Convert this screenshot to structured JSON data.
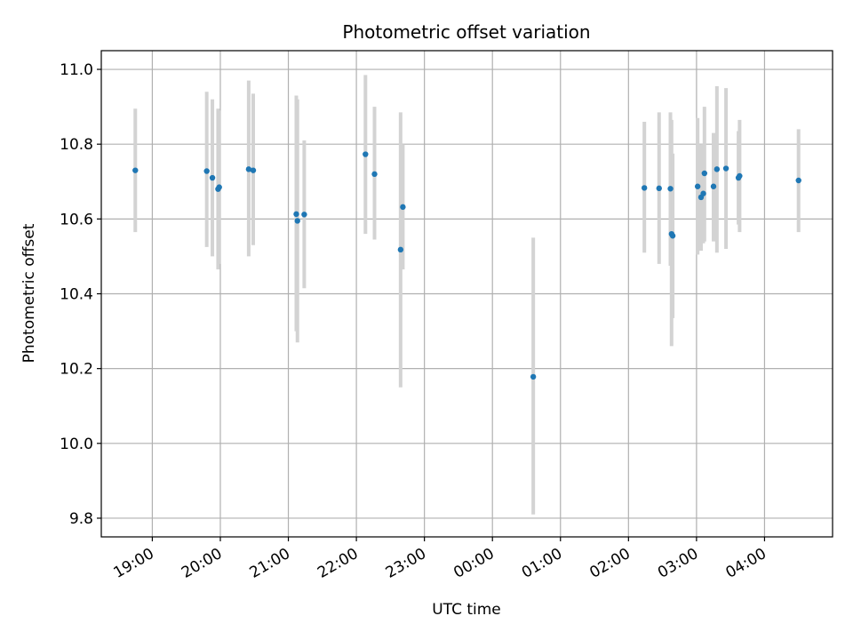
{
  "chart_data": {
    "type": "scatter",
    "title": "Photometric offset variation",
    "xlabel": "UTC time",
    "ylabel": "Photometric offset",
    "x_tick_labels": [
      "19:00",
      "20:00",
      "21:00",
      "22:00",
      "23:00",
      "00:00",
      "01:00",
      "02:00",
      "03:00",
      "04:00"
    ],
    "x_tick_hours": [
      19,
      20,
      21,
      22,
      23,
      24,
      25,
      26,
      27,
      28
    ],
    "xlim_hours": [
      18.25,
      29.0
    ],
    "ylim": [
      9.75,
      11.05
    ],
    "y_ticks": [
      9.8,
      10.0,
      10.2,
      10.4,
      10.6,
      10.8,
      11.0
    ],
    "y_tick_labels": [
      "9.8",
      "10.0",
      "10.2",
      "10.4",
      "10.6",
      "10.8",
      "11.0"
    ],
    "grid": true,
    "marker_color": "#1f77b4",
    "errorbar_color": "#d3d3d3",
    "points": [
      {
        "t": "18:45",
        "y": 10.73,
        "ylow": 10.565,
        "yhigh": 10.895
      },
      {
        "t": "19:48",
        "y": 10.728,
        "ylow": 10.525,
        "yhigh": 10.94
      },
      {
        "t": "19:53",
        "y": 10.71,
        "ylow": 10.5,
        "yhigh": 10.92
      },
      {
        "t": "19:58",
        "y": 10.68,
        "ylow": 10.465,
        "yhigh": 10.895
      },
      {
        "t": "19:59",
        "y": 10.685,
        "ylow": 10.48,
        "yhigh": 10.89
      },
      {
        "t": "20:25",
        "y": 10.733,
        "ylow": 10.5,
        "yhigh": 10.97
      },
      {
        "t": "20:29",
        "y": 10.73,
        "ylow": 10.53,
        "yhigh": 10.935
      },
      {
        "t": "21:07",
        "y": 10.613,
        "ylow": 10.3,
        "yhigh": 10.93
      },
      {
        "t": "21:08",
        "y": 10.595,
        "ylow": 10.27,
        "yhigh": 10.92
      },
      {
        "t": "21:14",
        "y": 10.612,
        "ylow": 10.415,
        "yhigh": 10.81
      },
      {
        "t": "22:08",
        "y": 10.773,
        "ylow": 10.56,
        "yhigh": 10.985
      },
      {
        "t": "22:16",
        "y": 10.72,
        "ylow": 10.545,
        "yhigh": 10.9
      },
      {
        "t": "22:39",
        "y": 10.518,
        "ylow": 10.15,
        "yhigh": 10.885
      },
      {
        "t": "22:41",
        "y": 10.632,
        "ylow": 10.465,
        "yhigh": 10.8
      },
      {
        "t": "00:36",
        "y": 10.178,
        "ylow": 9.81,
        "yhigh": 10.55
      },
      {
        "t": "02:14",
        "y": 10.683,
        "ylow": 10.51,
        "yhigh": 10.86
      },
      {
        "t": "02:27",
        "y": 10.682,
        "ylow": 10.48,
        "yhigh": 10.885
      },
      {
        "t": "02:37",
        "y": 10.681,
        "ylow": 10.475,
        "yhigh": 10.885
      },
      {
        "t": "02:38",
        "y": 10.56,
        "ylow": 10.26,
        "yhigh": 10.865
      },
      {
        "t": "02:39",
        "y": 10.555,
        "ylow": 10.335,
        "yhigh": 10.775
      },
      {
        "t": "03:01",
        "y": 10.687,
        "ylow": 10.505,
        "yhigh": 10.87
      },
      {
        "t": "03:04",
        "y": 10.658,
        "ylow": 10.515,
        "yhigh": 10.8
      },
      {
        "t": "03:06",
        "y": 10.668,
        "ylow": 10.535,
        "yhigh": 10.8
      },
      {
        "t": "03:07",
        "y": 10.722,
        "ylow": 10.54,
        "yhigh": 10.9
      },
      {
        "t": "03:15",
        "y": 10.687,
        "ylow": 10.54,
        "yhigh": 10.83
      },
      {
        "t": "03:18",
        "y": 10.733,
        "ylow": 10.51,
        "yhigh": 10.955
      },
      {
        "t": "03:26",
        "y": 10.735,
        "ylow": 10.52,
        "yhigh": 10.95
      },
      {
        "t": "03:37",
        "y": 10.71,
        "ylow": 10.585,
        "yhigh": 10.835
      },
      {
        "t": "03:38",
        "y": 10.715,
        "ylow": 10.565,
        "yhigh": 10.865
      },
      {
        "t": "04:30",
        "y": 10.703,
        "ylow": 10.565,
        "yhigh": 10.84
      }
    ]
  }
}
